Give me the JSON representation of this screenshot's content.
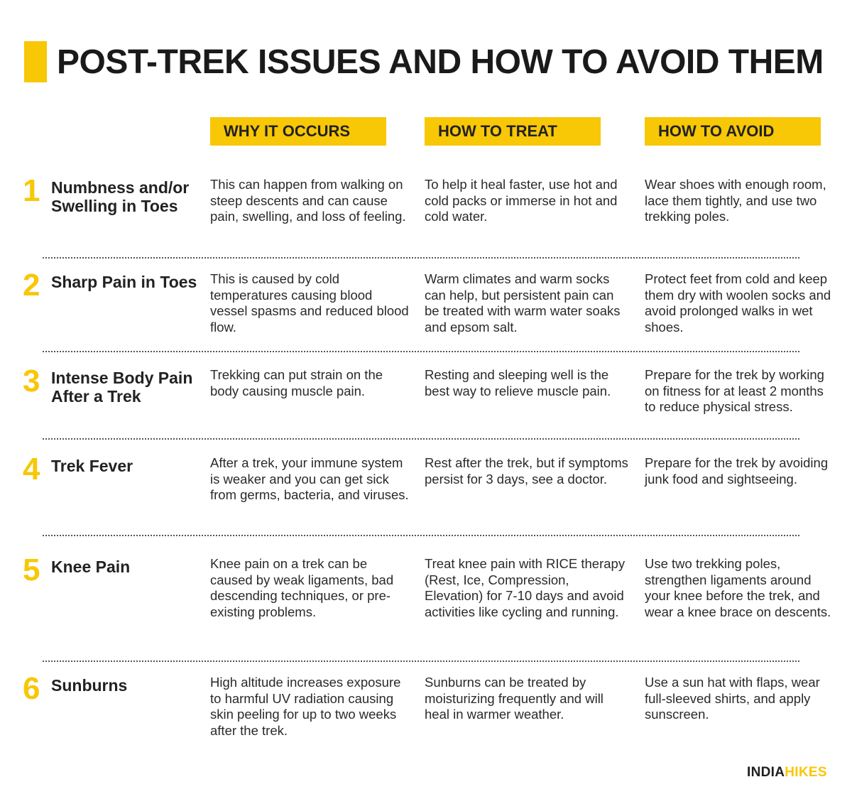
{
  "title": "POST-TREK ISSUES AND HOW TO AVOID THEM",
  "accent_color": "#F8C706",
  "columns": [
    "WHY IT  OCCURS",
    "HOW TO TREAT",
    "HOW TO AVOID"
  ],
  "rows": [
    {
      "number": "1",
      "title": "Numbness and/or Swelling in Toes",
      "why": "This can happen from walking on steep descents and can cause pain, swelling, and loss of feeling.",
      "treat": "To help it heal faster, use hot and cold packs or immerse in hot and cold water.",
      "avoid": "Wear shoes with enough room, lace them tightly, and use two trekking poles."
    },
    {
      "number": "2",
      "title": "Sharp Pain in Toes",
      "why": "This is caused by cold temperatures causing blood vessel spasms and reduced blood flow.",
      "treat": "Warm climates and warm socks can help, but persistent pain can be treated with warm water soaks and epsom salt.",
      "avoid": "Protect feet from cold and keep them dry with woolen socks and avoid prolonged walks in wet shoes."
    },
    {
      "number": "3",
      "title": "Intense Body Pain After a Trek",
      "why": "Trekking can put strain on the body causing muscle pain.",
      "treat": "Resting and sleeping well is the best way to relieve muscle pain.",
      "avoid": "Prepare for the trek by working on fitness for at least 2 months to reduce physical stress."
    },
    {
      "number": "4",
      "title": "Trek Fever",
      "why": "After a trek, your immune system is weaker and you can get sick from germs, bacteria, and viruses.",
      "treat": "Rest after the trek, but if symptoms persist for 3 days, see a doctor.",
      "avoid": "Prepare for the trek by avoiding junk food and sightseeing."
    },
    {
      "number": "5",
      "title": "Knee Pain",
      "why": "Knee pain on a trek can be caused by weak ligaments, bad descending techniques, or pre-existing problems.",
      "treat": "Treat knee pain with RICE therapy (Rest, Ice, Compression, Elevation) for 7-10 days and avoid activities like cycling and running.",
      "avoid": "Use two trekking poles, strengthen ligaments around your knee before the trek, and wear a knee brace on descents."
    },
    {
      "number": "6",
      "title": "Sunburns",
      "why": "High altitude increases exposure to harmful UV radiation causing skin peeling for up to two weeks after the trek.",
      "treat": "Sunburns can be treated by moisturizing frequently and will heal in warmer weather.",
      "avoid": "Use a sun hat with flaps, wear full-sleeved shirts, and apply sunscreen."
    }
  ],
  "logo": {
    "part1": "INDIA",
    "part2": "HIKES"
  }
}
